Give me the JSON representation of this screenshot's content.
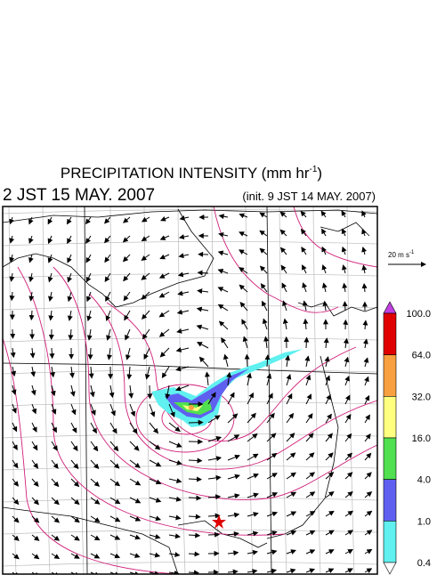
{
  "header": {
    "title": {
      "text": "PRECIPITATION INTENSITY (mm hr",
      "sup": "-1",
      "end": ")"
    },
    "valid_time": "2 JST 15 MAY. 2007",
    "init_time": "(init. 9 JST 14 MAY. 2007)"
  },
  "vector_key": {
    "text": "20 m s",
    "sup": "-1"
  },
  "colorbar": {
    "labels": [
      "100.0",
      "64.0",
      "32.0",
      "16.0",
      "4.0",
      "1.0",
      "0.4"
    ],
    "colors": [
      "#e00000",
      "#f8a040",
      "#ffff80",
      "#50e050",
      "#6060f0",
      "#60f0f0"
    ],
    "over_color": "#c040e0",
    "under_color": "#ffffff"
  }
}
